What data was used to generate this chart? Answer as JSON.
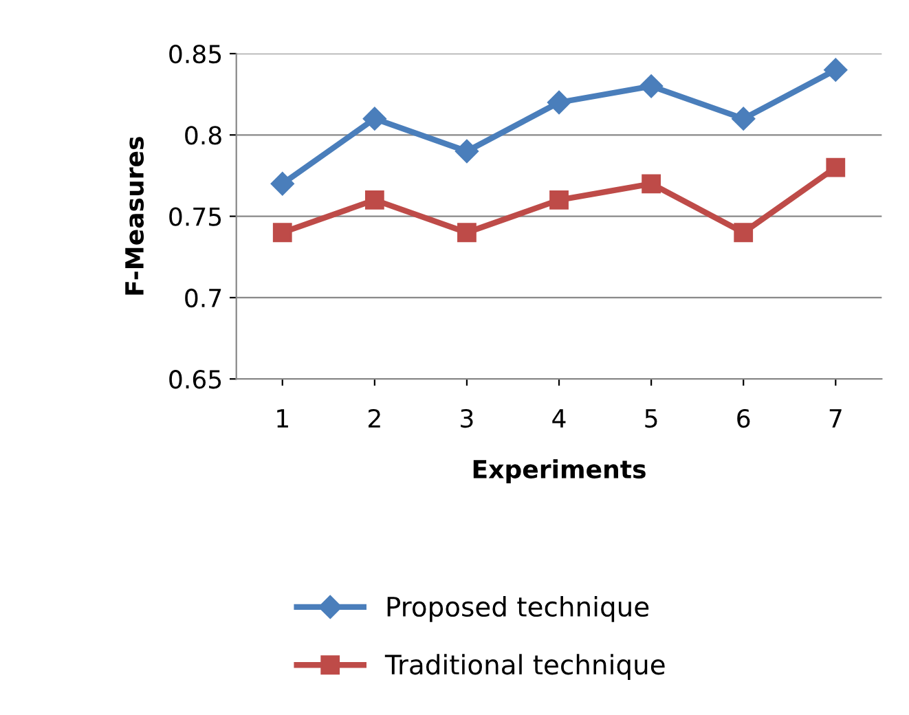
{
  "chart_data": {
    "type": "line",
    "xlabel": "Experiments",
    "ylabel": "F-Measures",
    "categories": [
      "1",
      "2",
      "3",
      "4",
      "5",
      "6",
      "7"
    ],
    "series": [
      {
        "name": "Proposed technique",
        "color": "#4a7ebb",
        "marker": "diamond",
        "values": [
          0.77,
          0.81,
          0.79,
          0.82,
          0.83,
          0.81,
          0.84
        ]
      },
      {
        "name": "Traditional technique",
        "color": "#be4b48",
        "marker": "square",
        "values": [
          0.74,
          0.76,
          0.74,
          0.76,
          0.77,
          0.74,
          0.78
        ]
      }
    ],
    "ylim": [
      0.65,
      0.85
    ],
    "yticks": [
      0.65,
      0.7,
      0.75,
      0.8,
      0.85
    ],
    "grid": "y",
    "legend": "bottom",
    "line_style": "solid"
  }
}
